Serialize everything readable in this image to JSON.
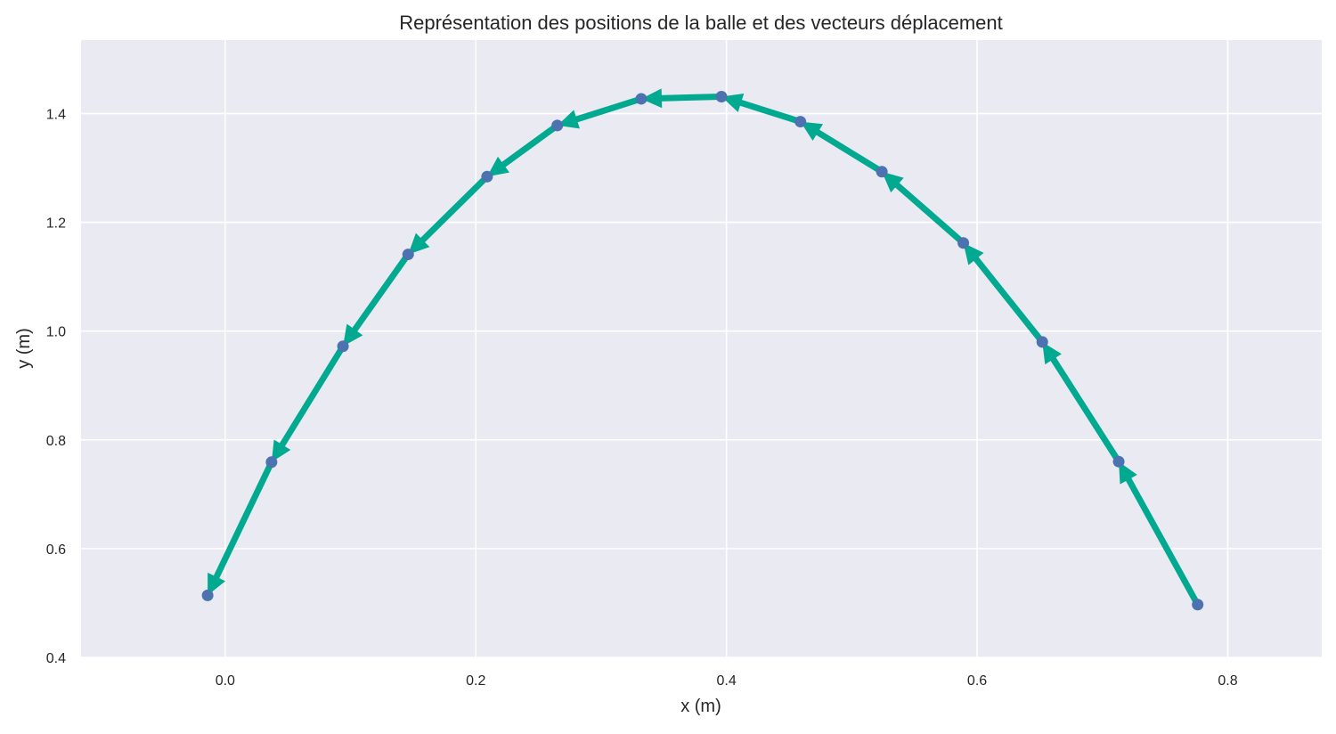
{
  "chart_data": {
    "type": "scatter",
    "title": "Représentation des positions de la balle et des vecteurs déplacement",
    "xlabel": "x (m)",
    "ylabel": "y (m)",
    "xlim": [
      -0.115,
      0.875
    ],
    "ylim": [
      0.4,
      1.535
    ],
    "xticks": [
      0.0,
      0.2,
      0.4,
      0.6,
      0.8
    ],
    "xtick_labels": [
      "0.0",
      "0.2",
      "0.4",
      "0.6",
      "0.8"
    ],
    "yticks": [
      0.4,
      0.6,
      0.8,
      1.0,
      1.2,
      1.4
    ],
    "ytick_labels": [
      "0.4",
      "0.6",
      "0.8",
      "1.0",
      "1.2",
      "1.4"
    ],
    "grid": true,
    "background": "#eaeaf2",
    "point_color": "#4c72b0",
    "arrow_color": "#00a98f",
    "points": {
      "x": [
        -0.014,
        0.037,
        0.094,
        0.146,
        0.209,
        0.265,
        0.332,
        0.396,
        0.459,
        0.524,
        0.589,
        0.652,
        0.713,
        0.776
      ],
      "y": [
        0.514,
        0.759,
        0.972,
        1.141,
        1.284,
        1.378,
        1.427,
        1.431,
        1.385,
        1.293,
        1.162,
        0.98,
        0.76,
        0.497
      ]
    },
    "arrows": "each arrow goes from point i+1 to point i (displacement vectors)"
  }
}
